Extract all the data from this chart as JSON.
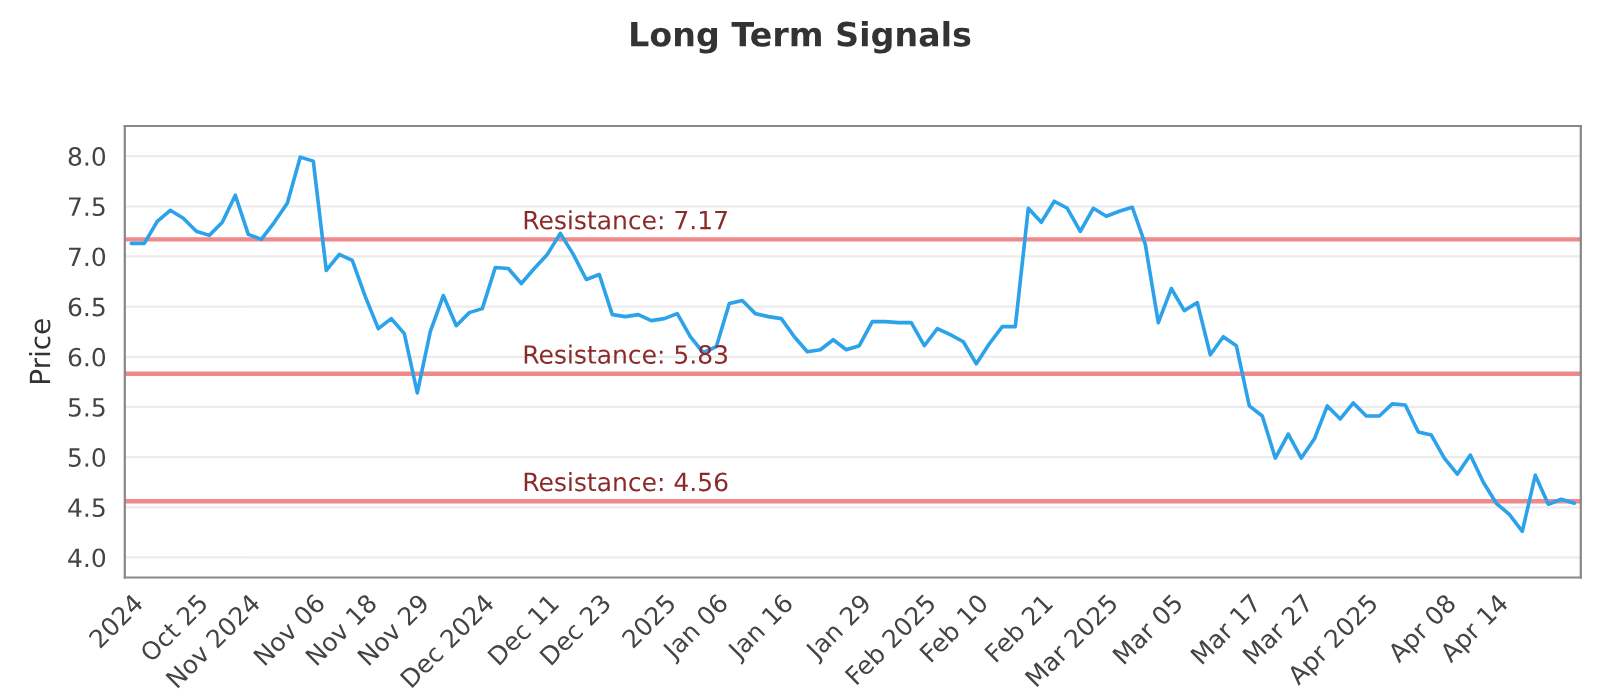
{
  "chart_data": {
    "type": "line",
    "title": "Long Term Signals",
    "ylabel": "Price",
    "series": [
      {
        "color": "#2ba2ea",
        "values": [
          7.13,
          7.13,
          7.35,
          7.46,
          7.38,
          7.25,
          7.21,
          7.34,
          7.61,
          7.22,
          7.17,
          7.34,
          7.53,
          7.99,
          7.95,
          6.86,
          7.02,
          6.96,
          6.6,
          6.28,
          6.38,
          6.23,
          5.64,
          6.25,
          6.61,
          6.31,
          6.44,
          6.48,
          6.89,
          6.88,
          6.73,
          6.88,
          7.02,
          7.23,
          7.02,
          6.77,
          6.82,
          6.42,
          6.4,
          6.42,
          6.36,
          6.38,
          6.43,
          6.2,
          6.04,
          6.1,
          6.53,
          6.56,
          6.43,
          6.4,
          6.38,
          6.2,
          6.05,
          6.07,
          6.17,
          6.07,
          6.11,
          6.35,
          6.35,
          6.34,
          6.34,
          6.11,
          6.28,
          6.22,
          6.15,
          5.93,
          6.13,
          6.3,
          6.3,
          7.48,
          7.34,
          7.55,
          7.48,
          7.25,
          7.48,
          7.4,
          7.45,
          7.49,
          7.12,
          6.34,
          6.68,
          6.46,
          6.54,
          6.02,
          6.2,
          6.11,
          5.51,
          5.41,
          4.99,
          5.23,
          4.99,
          5.18,
          5.51,
          5.38,
          5.54,
          5.41,
          5.41,
          5.53,
          5.52,
          5.25,
          5.22,
          4.99,
          4.83,
          5.02,
          4.75,
          4.54,
          4.43,
          4.26,
          4.82,
          4.53,
          4.58,
          4.54
        ]
      }
    ],
    "categories": [
      "2024",
      null,
      null,
      null,
      null,
      "Oct 25",
      null,
      null,
      null,
      "Nov 2024",
      null,
      null,
      null,
      null,
      "Nov 06",
      null,
      null,
      null,
      "Nov 18",
      null,
      null,
      null,
      "Nov 29",
      null,
      null,
      null,
      null,
      "Dec 2024",
      null,
      null,
      null,
      null,
      "Dec 11",
      null,
      null,
      null,
      "Dec 23",
      null,
      null,
      null,
      null,
      "2025",
      null,
      null,
      null,
      "Jan 06",
      null,
      null,
      null,
      null,
      "Jan 16",
      null,
      null,
      null,
      null,
      null,
      "Jan 29",
      null,
      null,
      null,
      null,
      "Feb 2025",
      null,
      null,
      null,
      "Feb 10",
      null,
      null,
      null,
      null,
      "Feb 21",
      null,
      null,
      null,
      null,
      "Mar 2025",
      null,
      null,
      null,
      null,
      "Mar 05",
      null,
      null,
      null,
      null,
      null,
      "Mar 17",
      null,
      null,
      null,
      "Mar 27",
      null,
      null,
      null,
      null,
      "Apr 2025",
      null,
      null,
      null,
      null,
      null,
      "Apr 08",
      null,
      null,
      null,
      "Apr 14",
      null,
      null,
      null,
      null,
      null,
      null
    ],
    "ylim": [
      3.8,
      8.3
    ],
    "yticks": [
      {
        "value": 4,
        "label": "4.0"
      },
      {
        "value": 4.5,
        "label": "4.5"
      },
      {
        "value": 5,
        "label": "5.0"
      },
      {
        "value": 5.5,
        "label": "5.5"
      },
      {
        "value": 6,
        "label": "6.0"
      },
      {
        "value": 6.5,
        "label": "6.5"
      },
      {
        "value": 7,
        "label": "7.0"
      },
      {
        "value": 7.5,
        "label": "7.5"
      },
      {
        "value": 8,
        "label": "8.0"
      }
    ],
    "ref_lines": [
      {
        "axis": "y",
        "value": 7.17,
        "label": "Resistance: 7.17",
        "color": "#f08a8a"
      },
      {
        "axis": "y",
        "value": 5.83,
        "label": "Resistance: 5.83",
        "color": "#f08a8a"
      },
      {
        "axis": "y",
        "value": 4.56,
        "label": "Resistance: 4.56",
        "color": "#f08a8a"
      }
    ],
    "grid": "y",
    "marker": "none",
    "line_style": "solid",
    "legend": false
  }
}
